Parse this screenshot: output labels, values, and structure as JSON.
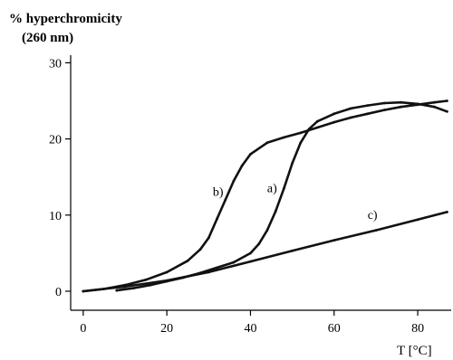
{
  "chart_data": {
    "type": "line",
    "title": "",
    "ylabel_line1": "% hyperchromicity",
    "ylabel_line2": "(260 nm)",
    "xlabel": "T [°C]",
    "xlim": [
      -3,
      88
    ],
    "ylim": [
      -2.5,
      31
    ],
    "x_ticks": [
      0,
      20,
      40,
      60,
      80
    ],
    "y_ticks": [
      0,
      10,
      20,
      30
    ],
    "grid": false,
    "legend": "none",
    "series": [
      {
        "name": "a)",
        "label_at": [
          44,
          13
        ],
        "x": [
          8,
          12,
          16,
          20,
          24,
          28,
          32,
          36,
          40,
          42,
          44,
          46,
          48,
          50,
          52,
          54,
          56,
          60,
          64,
          68,
          72,
          76,
          80,
          84,
          87
        ],
        "y": [
          0.1,
          0.4,
          0.8,
          1.3,
          1.8,
          2.4,
          3.1,
          3.8,
          5.0,
          6.2,
          8.0,
          10.5,
          13.5,
          16.8,
          19.5,
          21.3,
          22.3,
          23.3,
          24.0,
          24.4,
          24.7,
          24.8,
          24.6,
          24.2,
          23.6
        ]
      },
      {
        "name": "b)",
        "label_at": [
          31,
          12.5
        ],
        "x": [
          0,
          5,
          10,
          15,
          20,
          25,
          28,
          30,
          32,
          34,
          36,
          38,
          40,
          44,
          48,
          52,
          56,
          60,
          64,
          68,
          72,
          76,
          80,
          84,
          87
        ],
        "y": [
          0.0,
          0.3,
          0.8,
          1.5,
          2.5,
          4.0,
          5.5,
          7.0,
          9.5,
          12.0,
          14.5,
          16.5,
          18.0,
          19.5,
          20.2,
          20.8,
          21.5,
          22.2,
          22.8,
          23.3,
          23.8,
          24.2,
          24.5,
          24.8,
          25.0
        ]
      },
      {
        "name": "c)",
        "label_at": [
          68,
          9.5
        ],
        "x": [
          0,
          10,
          20,
          30,
          40,
          50,
          60,
          70,
          80,
          87
        ],
        "y": [
          0.0,
          0.6,
          1.4,
          2.5,
          3.9,
          5.3,
          6.7,
          8.0,
          9.4,
          10.4
        ]
      }
    ]
  }
}
